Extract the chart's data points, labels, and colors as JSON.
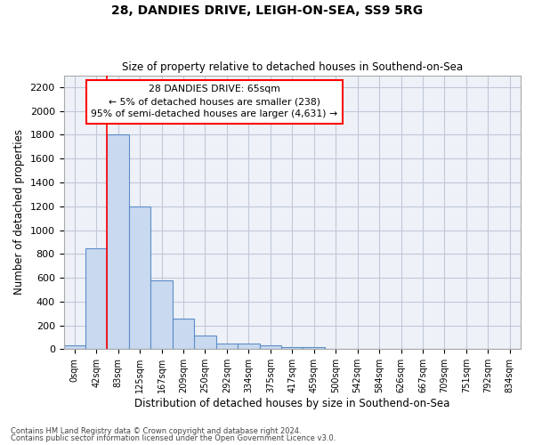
{
  "title": "28, DANDIES DRIVE, LEIGH-ON-SEA, SS9 5RG",
  "subtitle": "Size of property relative to detached houses in Southend-on-Sea",
  "xlabel": "Distribution of detached houses by size in Southend-on-Sea",
  "ylabel": "Number of detached properties",
  "bar_labels": [
    "0sqm",
    "42sqm",
    "83sqm",
    "125sqm",
    "167sqm",
    "209sqm",
    "250sqm",
    "292sqm",
    "334sqm",
    "375sqm",
    "417sqm",
    "459sqm",
    "500sqm",
    "542sqm",
    "584sqm",
    "626sqm",
    "667sqm",
    "709sqm",
    "751sqm",
    "792sqm",
    "834sqm"
  ],
  "bar_values": [
    30,
    850,
    1800,
    1200,
    580,
    260,
    115,
    45,
    45,
    30,
    20,
    15,
    0,
    0,
    0,
    0,
    0,
    0,
    0,
    0,
    0
  ],
  "bar_color": "#c9d9ef",
  "bar_edge_color": "#5b8dc8",
  "grid_color": "#c0c8d8",
  "background_color": "#eef2f8",
  "annotation_line1": "28 DANDIES DRIVE: 65sqm",
  "annotation_line2": "← 5% of detached houses are smaller (238)",
  "annotation_line3": "95% of semi-detached houses are larger (4,631) →",
  "footer_line1": "Contains HM Land Registry data © Crown copyright and database right 2024.",
  "footer_line2": "Contains public sector information licensed under the Open Government Licence v3.0.",
  "ylim": [
    0,
    2300
  ],
  "yticks": [
    0,
    200,
    400,
    600,
    800,
    1000,
    1200,
    1400,
    1600,
    1800,
    2000,
    2200
  ],
  "red_line_index": 1.5
}
